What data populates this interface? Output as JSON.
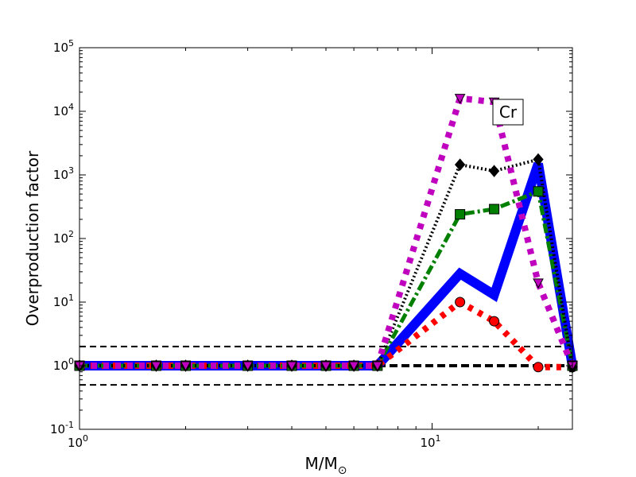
{
  "chart_data": {
    "type": "line",
    "annotation": "Cr",
    "xlabel": "M/M",
    "xlabel_symbol": "⊙",
    "ylabel": "Overproduction factor",
    "xscale": "log",
    "yscale": "log",
    "xlim": [
      1,
      25
    ],
    "ylim": [
      0.1,
      100000
    ],
    "x_ticks": [
      {
        "value": 1,
        "base": "10",
        "exp": "0"
      },
      {
        "value": 10,
        "base": "10",
        "exp": "1"
      }
    ],
    "y_ticks": [
      {
        "value": 0.1,
        "base": "10",
        "exp": "-1"
      },
      {
        "value": 1,
        "base": "10",
        "exp": "0"
      },
      {
        "value": 10,
        "base": "10",
        "exp": "1"
      },
      {
        "value": 100,
        "base": "10",
        "exp": "2"
      },
      {
        "value": 1000,
        "base": "10",
        "exp": "3"
      },
      {
        "value": 10000,
        "base": "10",
        "exp": "4"
      },
      {
        "value": 100000,
        "base": "10",
        "exp": "5"
      }
    ],
    "reference_lines": [
      {
        "y": 2,
        "style": "dashed"
      },
      {
        "y": 1,
        "style": "dashed-bold"
      },
      {
        "y": 0.5,
        "style": "dashed"
      }
    ],
    "series": [
      {
        "color": "#0000ff",
        "dash": "solid",
        "marker": "none",
        "x": [
          1,
          1.65,
          2,
          3,
          4,
          5,
          6,
          7,
          12,
          15,
          20,
          25
        ],
        "y": [
          1,
          1,
          1,
          1,
          1,
          1,
          1,
          1,
          28,
          13,
          1500,
          1
        ]
      },
      {
        "color": "#ff0000",
        "dash": "dotted",
        "marker": "circle",
        "x": [
          1,
          1.65,
          2,
          3,
          4,
          5,
          6,
          7,
          12,
          15,
          20,
          25
        ],
        "y": [
          1,
          1,
          1,
          1,
          1,
          1,
          1,
          1,
          10,
          5,
          0.95,
          0.95
        ]
      },
      {
        "color": "#007f00",
        "dash": "dashdot",
        "marker": "square",
        "x": [
          1,
          1.65,
          2,
          3,
          4,
          5,
          6,
          7,
          12,
          15,
          20,
          25
        ],
        "y": [
          1,
          1,
          1,
          1,
          1,
          1,
          1,
          1,
          240,
          290,
          550,
          1
        ]
      },
      {
        "color": "#000000",
        "dash": "dotted-fine",
        "marker": "diamond",
        "x": [
          1,
          1.65,
          2,
          3,
          4,
          5,
          6,
          7,
          12,
          15,
          20,
          25
        ],
        "y": [
          1,
          1,
          1,
          1,
          1,
          1,
          1,
          1,
          1450,
          1150,
          1750,
          0.95
        ]
      },
      {
        "color": "#bf00bf",
        "dash": "dotted-heavy",
        "marker": "triangle-down",
        "x": [
          1,
          1.65,
          2,
          3,
          4,
          5,
          6,
          7,
          12,
          15,
          20,
          25
        ],
        "y": [
          1,
          1,
          1,
          1,
          1,
          1,
          1,
          1,
          16000,
          14000,
          20,
          1
        ]
      }
    ]
  }
}
